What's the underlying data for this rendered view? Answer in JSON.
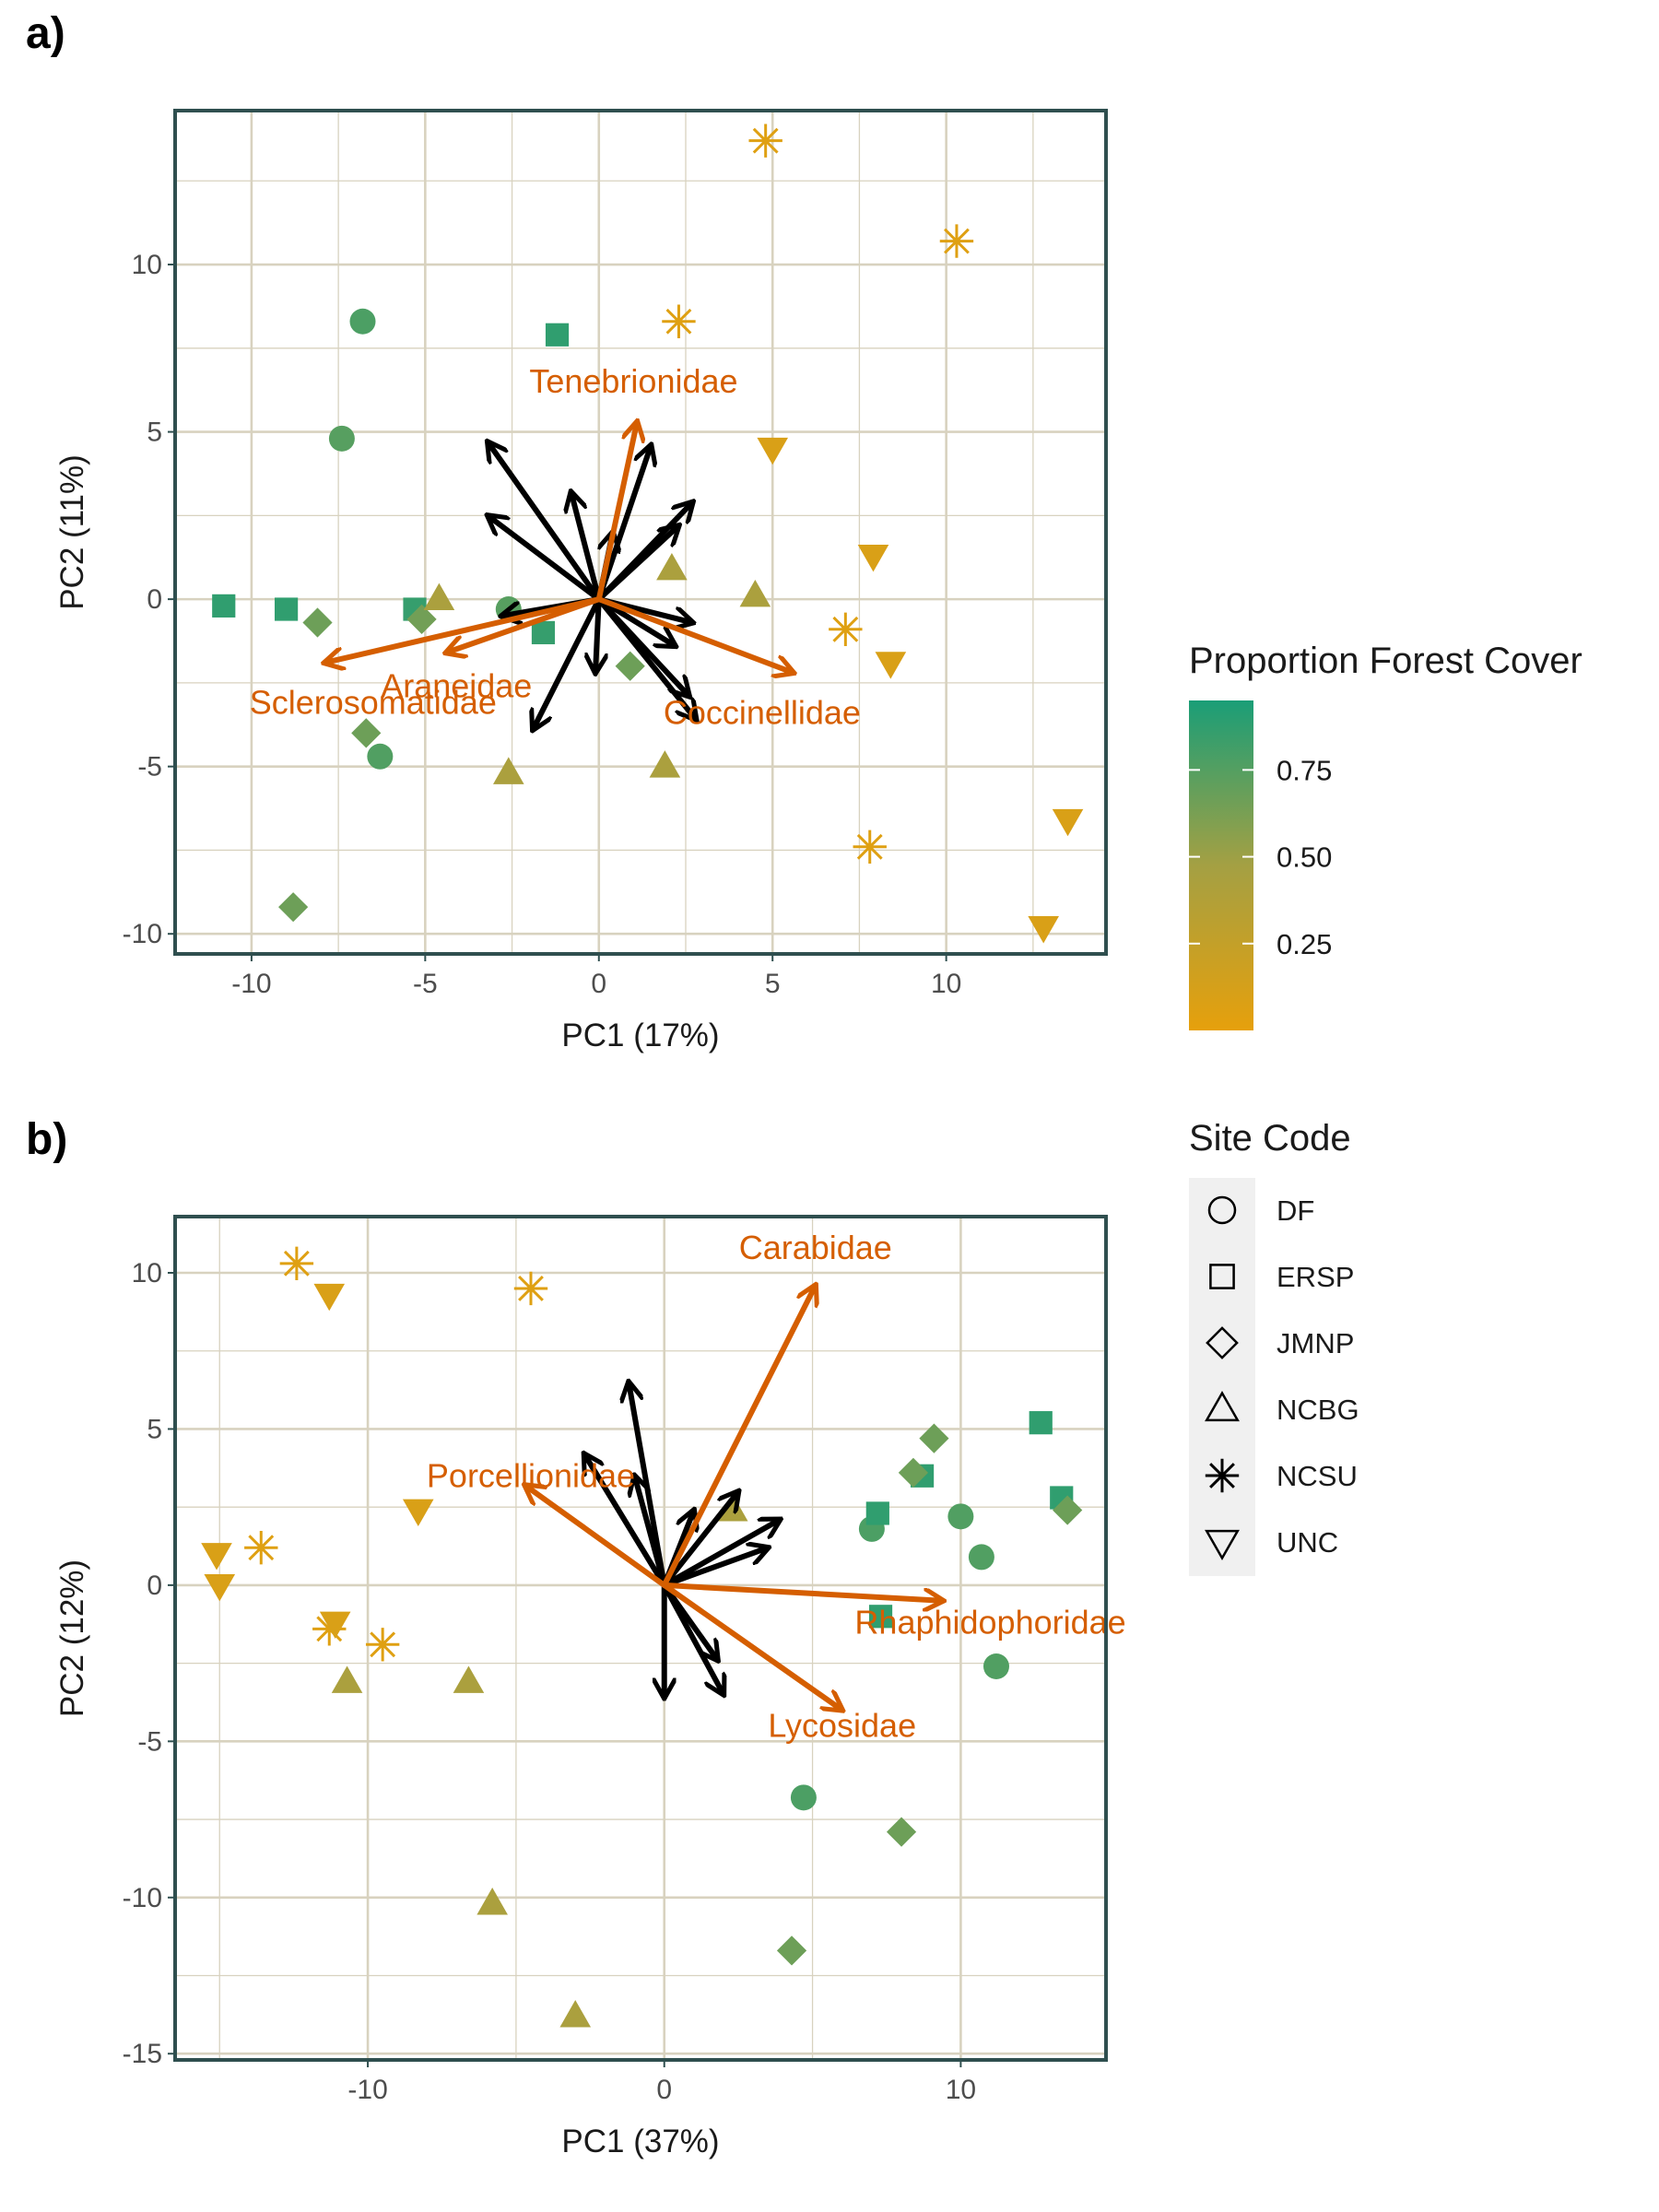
{
  "colors": {
    "high_forest": "#1a9e77",
    "mid_forest": "#a4a043",
    "low_forest": "#e6a00c",
    "loading_arrow": "#d55e00",
    "other_arrow": "#000000",
    "grid": "#d8d2bf",
    "panel_border": "#2f4f4f"
  },
  "legend": {
    "color_title": "Proportion Forest Cover",
    "color_ticks": [
      {
        "label": "0.75",
        "value": 0.75
      },
      {
        "label": "0.50",
        "value": 0.5
      },
      {
        "label": "0.25",
        "value": 0.25
      }
    ],
    "shape_title": "Site Code",
    "shapes": [
      {
        "label": "DF",
        "shape": "circle"
      },
      {
        "label": "ERSP",
        "shape": "square"
      },
      {
        "label": "JMNP",
        "shape": "diamond"
      },
      {
        "label": "NCBG",
        "shape": "triangle"
      },
      {
        "label": "NCSU",
        "shape": "asterisk"
      },
      {
        "label": "UNC",
        "shape": "triangle-down"
      }
    ]
  },
  "chart_data": [
    {
      "panel_tag": "a)",
      "type": "scatter",
      "xlabel": "PC1 (17%)",
      "ylabel": "PC2 (11%)",
      "xlim": [
        -12.2,
        14.6
      ],
      "ylim": [
        -10.6,
        14.6
      ],
      "xticks": [
        -10,
        -5,
        0,
        5,
        10
      ],
      "yticks": [
        -10,
        -5,
        0,
        5,
        10
      ],
      "grid": true,
      "points": [
        {
          "site": "DF",
          "x": -6.8,
          "y": 8.3,
          "forest": 0.82
        },
        {
          "site": "DF",
          "x": -7.4,
          "y": 4.8,
          "forest": 0.78
        },
        {
          "site": "DF",
          "x": -6.3,
          "y": -4.7,
          "forest": 0.8
        },
        {
          "site": "DF",
          "x": -2.6,
          "y": -0.3,
          "forest": 0.78
        },
        {
          "site": "ERSP",
          "x": -10.8,
          "y": -0.2,
          "forest": 0.92
        },
        {
          "site": "ERSP",
          "x": -9.0,
          "y": -0.3,
          "forest": 0.92
        },
        {
          "site": "ERSP",
          "x": -5.3,
          "y": -0.3,
          "forest": 0.9
        },
        {
          "site": "ERSP",
          "x": -1.2,
          "y": 7.9,
          "forest": 0.92
        },
        {
          "site": "ERSP",
          "x": -1.6,
          "y": -1.0,
          "forest": 0.9
        },
        {
          "site": "JMNP",
          "x": -8.1,
          "y": -0.7,
          "forest": 0.7
        },
        {
          "site": "JMNP",
          "x": -5.1,
          "y": -0.6,
          "forest": 0.68
        },
        {
          "site": "JMNP",
          "x": -6.7,
          "y": -4.0,
          "forest": 0.7
        },
        {
          "site": "JMNP",
          "x": -8.8,
          "y": -9.2,
          "forest": 0.7
        },
        {
          "site": "JMNP",
          "x": 0.9,
          "y": -2.0,
          "forest": 0.7
        },
        {
          "site": "NCBG",
          "x": -4.6,
          "y": 0.0,
          "forest": 0.45
        },
        {
          "site": "NCBG",
          "x": 2.1,
          "y": 0.9,
          "forest": 0.45
        },
        {
          "site": "NCBG",
          "x": 4.5,
          "y": 0.1,
          "forest": 0.45
        },
        {
          "site": "NCBG",
          "x": -2.6,
          "y": -5.2,
          "forest": 0.45
        },
        {
          "site": "NCBG",
          "x": 1.9,
          "y": -5.0,
          "forest": 0.45
        },
        {
          "site": "NCSU",
          "x": 4.8,
          "y": 13.7,
          "forest": 0.05
        },
        {
          "site": "NCSU",
          "x": 10.3,
          "y": 10.7,
          "forest": 0.05
        },
        {
          "site": "NCSU",
          "x": 2.3,
          "y": 8.3,
          "forest": 0.05
        },
        {
          "site": "NCSU",
          "x": 7.1,
          "y": -0.9,
          "forest": 0.05
        },
        {
          "site": "NCSU",
          "x": 7.8,
          "y": -7.4,
          "forest": 0.05
        },
        {
          "site": "UNC",
          "x": 5.0,
          "y": 4.5,
          "forest": 0.1
        },
        {
          "site": "UNC",
          "x": 7.9,
          "y": 1.3,
          "forest": 0.1
        },
        {
          "site": "UNC",
          "x": 8.4,
          "y": -1.9,
          "forest": 0.1
        },
        {
          "site": "UNC",
          "x": 13.5,
          "y": -6.6,
          "forest": 0.1
        },
        {
          "site": "UNC",
          "x": 12.8,
          "y": -9.8,
          "forest": 0.1
        }
      ],
      "loadings": [
        {
          "label": "Tenebrionidae",
          "x": 1.1,
          "y": 5.3,
          "label_x": 1.0,
          "label_y": 6.5
        },
        {
          "label": "Sclerosomatidae",
          "x": -7.9,
          "y": -1.9,
          "label_x": -6.5,
          "label_y": -3.1
        },
        {
          "label": "Araneidae",
          "x": -4.4,
          "y": -1.6,
          "label_x": -4.1,
          "label_y": -2.6
        },
        {
          "label": "Coccinellidae",
          "x": 5.6,
          "y": -2.2,
          "label_x": 4.7,
          "label_y": -3.4
        }
      ],
      "vectors": [
        {
          "x": -3.2,
          "y": 4.7
        },
        {
          "x": -3.2,
          "y": 2.5
        },
        {
          "x": -0.8,
          "y": 3.2
        },
        {
          "x": 1.5,
          "y": 4.6
        },
        {
          "x": 2.7,
          "y": 2.9
        },
        {
          "x": 0.4,
          "y": 2.0
        },
        {
          "x": 2.3,
          "y": 2.2
        },
        {
          "x": 2.7,
          "y": -0.7
        },
        {
          "x": 2.2,
          "y": -1.4
        },
        {
          "x": 2.6,
          "y": -2.9
        },
        {
          "x": 2.8,
          "y": -3.6
        },
        {
          "x": -0.1,
          "y": -2.2
        },
        {
          "x": -1.9,
          "y": -3.9
        },
        {
          "x": -2.8,
          "y": -0.5
        }
      ]
    },
    {
      "panel_tag": "b)",
      "type": "scatter",
      "xlabel": "PC1 (37%)",
      "ylabel": "PC2 (12%)",
      "xlim": [
        -16.5,
        14.9
      ],
      "ylim": [
        -15.2,
        11.8
      ],
      "xticks": [
        -10,
        0,
        10
      ],
      "yticks": [
        -15,
        -10,
        -5,
        0,
        5,
        10
      ],
      "grid": true,
      "points": [
        {
          "site": "DF",
          "x": 7.0,
          "y": 1.8,
          "forest": 0.82
        },
        {
          "site": "DF",
          "x": 10.0,
          "y": 2.2,
          "forest": 0.8
        },
        {
          "site": "DF",
          "x": 10.7,
          "y": 0.9,
          "forest": 0.8
        },
        {
          "site": "DF",
          "x": 11.2,
          "y": -2.6,
          "forest": 0.8
        },
        {
          "site": "DF",
          "x": 4.7,
          "y": -6.8,
          "forest": 0.82
        },
        {
          "site": "ERSP",
          "x": 7.2,
          "y": 2.3,
          "forest": 0.92
        },
        {
          "site": "ERSP",
          "x": 8.7,
          "y": 3.5,
          "forest": 0.92
        },
        {
          "site": "ERSP",
          "x": 12.7,
          "y": 5.2,
          "forest": 0.92
        },
        {
          "site": "ERSP",
          "x": 13.4,
          "y": 2.8,
          "forest": 0.92
        },
        {
          "site": "ERSP",
          "x": 7.3,
          "y": -1.0,
          "forest": 0.92
        },
        {
          "site": "JMNP",
          "x": 9.1,
          "y": 4.7,
          "forest": 0.7
        },
        {
          "site": "JMNP",
          "x": 8.4,
          "y": 3.6,
          "forest": 0.7
        },
        {
          "site": "JMNP",
          "x": 13.6,
          "y": 2.4,
          "forest": 0.7
        },
        {
          "site": "JMNP",
          "x": 8.0,
          "y": -7.9,
          "forest": 0.7
        },
        {
          "site": "JMNP",
          "x": 4.3,
          "y": -11.7,
          "forest": 0.7
        },
        {
          "site": "NCBG",
          "x": 2.3,
          "y": 2.4,
          "forest": 0.45
        },
        {
          "site": "NCBG",
          "x": -10.7,
          "y": -3.1,
          "forest": 0.45
        },
        {
          "site": "NCBG",
          "x": -6.6,
          "y": -3.1,
          "forest": 0.45
        },
        {
          "site": "NCBG",
          "x": -5.8,
          "y": -10.2,
          "forest": 0.45
        },
        {
          "site": "NCBG",
          "x": -3.0,
          "y": -13.8,
          "forest": 0.45
        },
        {
          "site": "NCSU",
          "x": -12.4,
          "y": 10.3,
          "forest": 0.05
        },
        {
          "site": "NCSU",
          "x": -4.5,
          "y": 9.5,
          "forest": 0.05
        },
        {
          "site": "NCSU",
          "x": -13.6,
          "y": 1.2,
          "forest": 0.05
        },
        {
          "site": "NCSU",
          "x": -11.3,
          "y": -1.4,
          "forest": 0.05
        },
        {
          "site": "NCSU",
          "x": -9.5,
          "y": -1.9,
          "forest": 0.05
        },
        {
          "site": "UNC",
          "x": -11.3,
          "y": 9.3,
          "forest": 0.1
        },
        {
          "site": "UNC",
          "x": -8.3,
          "y": 2.4,
          "forest": 0.1
        },
        {
          "site": "UNC",
          "x": -15.1,
          "y": 1.0,
          "forest": 0.1
        },
        {
          "site": "UNC",
          "x": -15.0,
          "y": 0.0,
          "forest": 0.1
        },
        {
          "site": "UNC",
          "x": -11.1,
          "y": -1.2,
          "forest": 0.1
        }
      ],
      "loadings": [
        {
          "label": "Carabidae",
          "x": 5.1,
          "y": 9.6,
          "label_x": 5.1,
          "label_y": 10.8
        },
        {
          "label": "Porcellionidae",
          "x": -4.7,
          "y": 3.2,
          "label_x": -4.5,
          "label_y": 3.5
        },
        {
          "label": "Rhaphidophoridae",
          "x": 9.4,
          "y": -0.5,
          "label_x": 11.0,
          "label_y": -1.2
        },
        {
          "label": "Lycosidae",
          "x": 6.0,
          "y": -4.0,
          "label_x": 6.0,
          "label_y": -4.5
        }
      ],
      "vectors": [
        {
          "x": -1.2,
          "y": 6.5
        },
        {
          "x": -2.7,
          "y": 4.2
        },
        {
          "x": -1.0,
          "y": 3.5
        },
        {
          "x": 1.0,
          "y": 2.4
        },
        {
          "x": 2.5,
          "y": 3.0
        },
        {
          "x": 3.9,
          "y": 2.1
        },
        {
          "x": 3.5,
          "y": 1.2
        },
        {
          "x": 0.0,
          "y": -3.6
        },
        {
          "x": 2.0,
          "y": -3.5
        },
        {
          "x": 1.8,
          "y": -2.4
        }
      ]
    }
  ]
}
